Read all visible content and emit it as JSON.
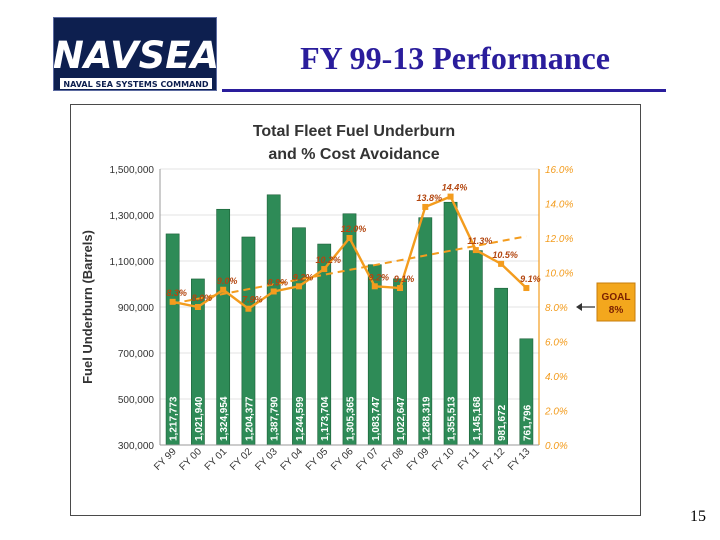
{
  "slide": {
    "title": "FY 99-13 Performance",
    "page_number": "15"
  },
  "logo": {
    "wordmark": "NAVSEA",
    "tagline": "NAVAL SEA SYSTEMS COMMAND",
    "colors": {
      "background": "#0d1f4f",
      "text": "#ffffff"
    }
  },
  "colors": {
    "bar": "#2e8b57",
    "bar_edge": "#1a5e36",
    "line": "#f39c1e",
    "title_blue": "#2a1d9c",
    "goal_box": "#f3a71d"
  },
  "chart_data": {
    "type": "bar",
    "title_line1": "Total Fleet Fuel Underburn",
    "title_line2": "and % Cost Avoidance",
    "ylabel": "Fuel Underburn (Barrels)",
    "categories": [
      "FY 99",
      "FY 00",
      "FY 01",
      "FY 02",
      "FY 03",
      "FY 04",
      "FY 05",
      "FY 06",
      "FY 07",
      "FY 08",
      "FY 09",
      "FY 10",
      "FY 11",
      "FY 12",
      "FY 13"
    ],
    "series": [
      {
        "axis": "left",
        "values": [
          1217773,
          1021940,
          1324954,
          1204377,
          1387790,
          1244599,
          1173704,
          1305365,
          1083747,
          1022647,
          1288319,
          1355513,
          1145168,
          981672,
          761796
        ],
        "labels": [
          "1,217,773",
          "1,021,940",
          "1,324,954",
          "1,204,377",
          "1,387,790",
          "1,244,599",
          "1,173,704",
          "1,305,365",
          "1,083,747",
          "1,022,647",
          "1,288,319",
          "1,355,513",
          "1,145,168",
          "981,672",
          "761,796"
        ]
      },
      {
        "axis": "right",
        "type": "line",
        "values": [
          8.3,
          8.0,
          9.0,
          7.9,
          8.9,
          9.2,
          10.2,
          12.0,
          9.2,
          9.1,
          13.8,
          14.4,
          11.3,
          10.5,
          9.1
        ],
        "labels": [
          "8.3%",
          "8.0%",
          "9.0%",
          "7.9%",
          "8.9%",
          "9.2%",
          "10.2%",
          "12.0%",
          "9.2%",
          "9.1%",
          "13.8%",
          "14.4%",
          "11.3%",
          "10.5%",
          "9.1%"
        ]
      }
    ],
    "y_left": {
      "lim": [
        300000,
        1500000
      ],
      "ticks": [
        300000,
        500000,
        700000,
        900000,
        1100000,
        1300000,
        1500000
      ],
      "tick_labels": [
        "300,000",
        "500,000",
        "700,000",
        "900,000",
        "1,100,000",
        "1,300,000",
        "1,500,000"
      ]
    },
    "y_right": {
      "lim": [
        0,
        16
      ],
      "ticks": [
        0,
        2,
        4,
        6,
        8,
        10,
        12,
        14,
        16
      ],
      "tick_labels": [
        "0.0%",
        "2.0%",
        "4.0%",
        "6.0%",
        "8.0%",
        "10.0%",
        "12.0%",
        "14.0%",
        "16.0%"
      ]
    },
    "trendline": {
      "style": "dashed",
      "start": 8.2,
      "end": 12.1
    },
    "goal": {
      "label": "GOAL",
      "value": 8,
      "value_label": "8%"
    },
    "grid": "horizontal",
    "legend": "none"
  }
}
